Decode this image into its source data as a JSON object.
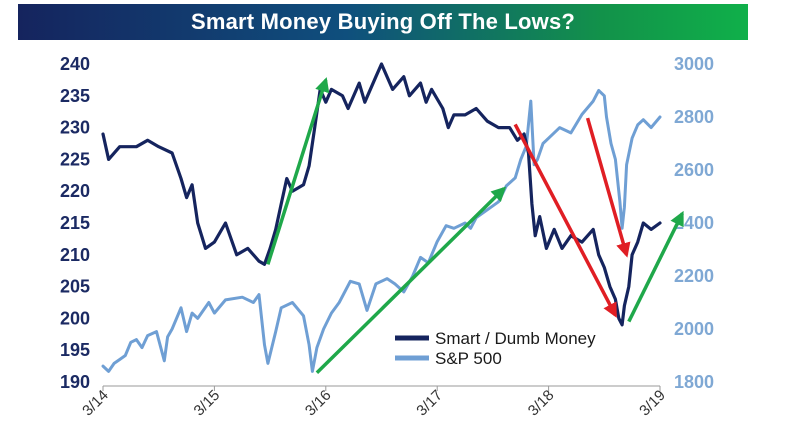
{
  "header": {
    "title": "Smart Money Buying Off The Lows?"
  },
  "chart_data": {
    "type": "line",
    "title": "Smart Money Buying Off The Lows?",
    "x_ticks": [
      "3/14",
      "3/15",
      "3/16",
      "3/17",
      "3/18",
      "3/19"
    ],
    "x_range": [
      "2014-03",
      "2019-03"
    ],
    "y_left": {
      "ylim": [
        190,
        240
      ],
      "ticks": [
        "240",
        "235",
        "230",
        "225",
        "220",
        "215",
        "210",
        "205",
        "200",
        "195",
        "190"
      ]
    },
    "y_right": {
      "ylim": [
        1800,
        3000
      ],
      "ticks": [
        "3000",
        "2800",
        "2600",
        "2400",
        "2200",
        "2000",
        "1800"
      ]
    },
    "legend_position": "bottom-right",
    "series": [
      {
        "name": "Smart / Dumb Money",
        "axis": "left",
        "color": "#15245e",
        "points": [
          [
            2014.0,
            229
          ],
          [
            2014.05,
            225
          ],
          [
            2014.15,
            227
          ],
          [
            2014.3,
            227
          ],
          [
            2014.4,
            228
          ],
          [
            2014.5,
            227
          ],
          [
            2014.62,
            226
          ],
          [
            2014.7,
            222
          ],
          [
            2014.75,
            219
          ],
          [
            2014.8,
            221
          ],
          [
            2014.85,
            215
          ],
          [
            2014.92,
            211
          ],
          [
            2015.0,
            212
          ],
          [
            2015.1,
            215
          ],
          [
            2015.2,
            210
          ],
          [
            2015.3,
            211
          ],
          [
            2015.4,
            209
          ],
          [
            2015.45,
            208.5
          ],
          [
            2015.5,
            211
          ],
          [
            2015.55,
            214
          ],
          [
            2015.6,
            218
          ],
          [
            2015.65,
            222
          ],
          [
            2015.7,
            220
          ],
          [
            2015.8,
            221
          ],
          [
            2015.85,
            224
          ],
          [
            2015.9,
            230
          ],
          [
            2015.95,
            236
          ],
          [
            2016.0,
            234
          ],
          [
            2016.05,
            236
          ],
          [
            2016.15,
            235
          ],
          [
            2016.2,
            233
          ],
          [
            2016.3,
            237
          ],
          [
            2016.35,
            234
          ],
          [
            2016.45,
            238
          ],
          [
            2016.5,
            240
          ],
          [
            2016.6,
            236
          ],
          [
            2016.7,
            238
          ],
          [
            2016.75,
            235
          ],
          [
            2016.85,
            237
          ],
          [
            2016.9,
            234
          ],
          [
            2016.95,
            236
          ],
          [
            2017.05,
            233
          ],
          [
            2017.1,
            230
          ],
          [
            2017.15,
            232
          ],
          [
            2017.25,
            232
          ],
          [
            2017.35,
            233
          ],
          [
            2017.45,
            231
          ],
          [
            2017.55,
            230
          ],
          [
            2017.65,
            230
          ],
          [
            2017.72,
            228
          ],
          [
            2017.78,
            229
          ],
          [
            2017.82,
            226
          ],
          [
            2017.85,
            218
          ],
          [
            2017.88,
            213
          ],
          [
            2017.92,
            216
          ],
          [
            2017.98,
            211
          ],
          [
            2018.05,
            214
          ],
          [
            2018.12,
            211
          ],
          [
            2018.2,
            213
          ],
          [
            2018.3,
            212
          ],
          [
            2018.4,
            214
          ],
          [
            2018.45,
            210
          ],
          [
            2018.5,
            208
          ],
          [
            2018.55,
            205
          ],
          [
            2018.6,
            203
          ],
          [
            2018.63,
            200
          ],
          [
            2018.66,
            199
          ],
          [
            2018.68,
            202
          ],
          [
            2018.72,
            205
          ],
          [
            2018.75,
            210
          ],
          [
            2018.8,
            212
          ],
          [
            2018.85,
            215
          ],
          [
            2018.92,
            214
          ],
          [
            2019.0,
            215
          ]
        ]
      },
      {
        "name": "S&P 500",
        "axis": "right",
        "color": "#6f9fd4",
        "points": [
          [
            2014.0,
            1860
          ],
          [
            2014.05,
            1840
          ],
          [
            2014.1,
            1870
          ],
          [
            2014.15,
            1885
          ],
          [
            2014.2,
            1900
          ],
          [
            2014.25,
            1950
          ],
          [
            2014.3,
            1960
          ],
          [
            2014.35,
            1930
          ],
          [
            2014.4,
            1975
          ],
          [
            2014.48,
            1990
          ],
          [
            2014.55,
            1880
          ],
          [
            2014.58,
            1970
          ],
          [
            2014.62,
            2000
          ],
          [
            2014.7,
            2080
          ],
          [
            2014.75,
            1990
          ],
          [
            2014.8,
            2060
          ],
          [
            2014.85,
            2040
          ],
          [
            2014.95,
            2100
          ],
          [
            2015.0,
            2060
          ],
          [
            2015.1,
            2110
          ],
          [
            2015.25,
            2120
          ],
          [
            2015.35,
            2100
          ],
          [
            2015.4,
            2130
          ],
          [
            2015.45,
            1940
          ],
          [
            2015.48,
            1870
          ],
          [
            2015.55,
            1990
          ],
          [
            2015.6,
            2080
          ],
          [
            2015.7,
            2100
          ],
          [
            2015.8,
            2050
          ],
          [
            2015.85,
            1940
          ],
          [
            2015.88,
            1840
          ],
          [
            2015.92,
            1930
          ],
          [
            2015.98,
            2000
          ],
          [
            2016.05,
            2060
          ],
          [
            2016.12,
            2100
          ],
          [
            2016.22,
            2180
          ],
          [
            2016.3,
            2170
          ],
          [
            2016.37,
            2070
          ],
          [
            2016.45,
            2170
          ],
          [
            2016.55,
            2190
          ],
          [
            2016.62,
            2170
          ],
          [
            2016.7,
            2140
          ],
          [
            2016.78,
            2200
          ],
          [
            2016.85,
            2270
          ],
          [
            2016.92,
            2250
          ],
          [
            2017.0,
            2330
          ],
          [
            2017.08,
            2390
          ],
          [
            2017.15,
            2380
          ],
          [
            2017.25,
            2400
          ],
          [
            2017.3,
            2380
          ],
          [
            2017.35,
            2420
          ],
          [
            2017.45,
            2450
          ],
          [
            2017.55,
            2480
          ],
          [
            2017.62,
            2540
          ],
          [
            2017.7,
            2570
          ],
          [
            2017.75,
            2640
          ],
          [
            2017.8,
            2690
          ],
          [
            2017.84,
            2860
          ],
          [
            2017.87,
            2620
          ],
          [
            2017.9,
            2640
          ],
          [
            2017.95,
            2700
          ],
          [
            2018.0,
            2720
          ],
          [
            2018.1,
            2760
          ],
          [
            2018.2,
            2740
          ],
          [
            2018.3,
            2810
          ],
          [
            2018.4,
            2860
          ],
          [
            2018.45,
            2900
          ],
          [
            2018.5,
            2880
          ],
          [
            2018.52,
            2800
          ],
          [
            2018.56,
            2700
          ],
          [
            2018.6,
            2640
          ],
          [
            2018.64,
            2480
          ],
          [
            2018.66,
            2380
          ],
          [
            2018.68,
            2460
          ],
          [
            2018.7,
            2620
          ],
          [
            2018.75,
            2720
          ],
          [
            2018.8,
            2770
          ],
          [
            2018.85,
            2790
          ],
          [
            2018.92,
            2760
          ],
          [
            2019.0,
            2800
          ]
        ]
      }
    ],
    "annotations": [
      {
        "type": "arrow",
        "color": "green",
        "from": [
          2015.48,
          208.5
        ],
        "to": [
          2016.0,
          237.5
        ],
        "axis": "left"
      },
      {
        "type": "arrow",
        "color": "green",
        "from": [
          2015.92,
          1835
        ],
        "to": [
          2017.6,
          2530
        ],
        "axis": "right"
      },
      {
        "type": "arrow",
        "color": "red",
        "from": [
          2017.7,
          230.5
        ],
        "to": [
          2018.6,
          200.5
        ],
        "axis": "left"
      },
      {
        "type": "arrow",
        "color": "red",
        "from": [
          2018.35,
          231.5
        ],
        "to": [
          2018.7,
          210
        ],
        "axis": "left"
      },
      {
        "type": "arrow",
        "color": "green",
        "from": [
          2018.72,
          199.5
        ],
        "to": [
          2019.2,
          216.5
        ],
        "axis": "left"
      }
    ]
  }
}
